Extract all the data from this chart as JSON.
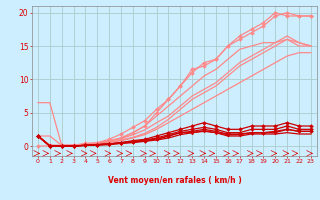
{
  "background_color": "#cceeff",
  "grid_color": "#aacccc",
  "text_color": "#dd0000",
  "xlabel": "Vent moyen/en rafales ( km/h )",
  "x": [
    0,
    1,
    2,
    3,
    4,
    5,
    6,
    7,
    8,
    9,
    10,
    11,
    12,
    13,
    14,
    15,
    16,
    17,
    18,
    19,
    20,
    21,
    22,
    23
  ],
  "ylim": [
    -1.5,
    21
  ],
  "yticks": [
    0,
    5,
    10,
    15,
    20
  ],
  "series": [
    {
      "y": [
        6.5,
        6.5,
        0.1,
        0.1,
        0.2,
        0.4,
        0.8,
        1.2,
        2.0,
        3.0,
        4.5,
        6.0,
        7.5,
        9.0,
        10.5,
        11.5,
        13.0,
        14.5,
        15.0,
        15.5,
        15.5,
        16.0,
        15.0,
        15.0
      ],
      "color": "#ff8888",
      "marker": null,
      "lw": 0.9
    },
    {
      "y": [
        0.0,
        0.0,
        0.0,
        0.0,
        0.2,
        0.4,
        0.7,
        1.2,
        2.0,
        3.0,
        5.0,
        7.0,
        9.0,
        11.0,
        12.5,
        13.0,
        15.0,
        16.0,
        17.0,
        18.0,
        19.5,
        20.0,
        19.5,
        19.5
      ],
      "color": "#ff8888",
      "marker": "D",
      "ms": 2,
      "lw": 0.9
    },
    {
      "y": [
        1.5,
        1.5,
        0.1,
        0.1,
        0.2,
        0.3,
        0.5,
        0.8,
        1.2,
        1.7,
        2.5,
        3.5,
        4.5,
        5.5,
        6.5,
        7.5,
        8.5,
        9.5,
        10.5,
        11.5,
        12.5,
        13.5,
        14.0,
        14.0
      ],
      "color": "#ff8888",
      "marker": null,
      "lw": 0.9
    },
    {
      "y": [
        1.5,
        0.1,
        0.1,
        0.1,
        0.2,
        0.3,
        0.5,
        0.9,
        1.3,
        1.9,
        2.8,
        4.0,
        5.5,
        7.0,
        8.0,
        9.0,
        10.5,
        12.0,
        13.0,
        14.0,
        15.0,
        16.0,
        15.5,
        15.0
      ],
      "color": "#ff8888",
      "marker": null,
      "lw": 0.9
    },
    {
      "y": [
        1.5,
        0.1,
        0.0,
        0.1,
        0.2,
        0.3,
        0.7,
        1.1,
        1.7,
        2.4,
        3.5,
        4.5,
        6.0,
        7.5,
        8.5,
        9.5,
        11.0,
        12.5,
        13.5,
        14.5,
        15.5,
        16.5,
        15.5,
        15.0
      ],
      "color": "#ff8888",
      "marker": null,
      "lw": 0.9
    },
    {
      "y": [
        1.5,
        0.1,
        0.1,
        0.1,
        0.4,
        0.5,
        1.0,
        1.8,
        2.8,
        3.8,
        5.5,
        7.0,
        9.0,
        11.5,
        12.0,
        13.0,
        15.0,
        16.5,
        17.5,
        18.5,
        20.0,
        19.5,
        19.5,
        19.5
      ],
      "color": "#ff8888",
      "marker": "D",
      "ms": 2,
      "lw": 0.9
    },
    {
      "y": [
        1.5,
        0.0,
        0.0,
        0.0,
        0.1,
        0.2,
        0.3,
        0.5,
        0.8,
        1.0,
        1.5,
        2.0,
        2.5,
        3.0,
        3.5,
        3.0,
        2.5,
        2.5,
        3.0,
        3.0,
        3.0,
        3.5,
        3.0,
        3.0
      ],
      "color": "#cc0000",
      "marker": "D",
      "ms": 2,
      "lw": 0.9
    },
    {
      "y": [
        1.5,
        0.0,
        0.0,
        0.0,
        0.1,
        0.2,
        0.3,
        0.5,
        0.7,
        0.9,
        1.2,
        1.7,
        2.2,
        2.5,
        2.8,
        2.5,
        2.0,
        2.0,
        2.5,
        2.5,
        2.5,
        3.0,
        2.5,
        2.5
      ],
      "color": "#cc0000",
      "marker": "D",
      "ms": 2,
      "lw": 0.9
    },
    {
      "y": [
        1.5,
        0.0,
        0.0,
        0.0,
        0.1,
        0.2,
        0.3,
        0.4,
        0.6,
        0.8,
        1.0,
        1.5,
        2.0,
        2.2,
        2.5,
        2.2,
        1.8,
        1.8,
        2.0,
        2.0,
        2.2,
        2.5,
        2.2,
        2.2
      ],
      "color": "#cc0000",
      "marker": "D",
      "ms": 2,
      "lw": 0.9
    },
    {
      "y": [
        1.5,
        0.0,
        0.0,
        0.0,
        0.1,
        0.2,
        0.3,
        0.5,
        0.6,
        0.8,
        1.0,
        1.5,
        2.0,
        2.0,
        2.3,
        2.0,
        1.7,
        1.7,
        2.0,
        2.0,
        2.0,
        2.5,
        2.2,
        2.2
      ],
      "color": "#cc0000",
      "marker": "D",
      "ms": 1.5,
      "lw": 0.9
    },
    {
      "y": [
        1.5,
        0.0,
        0.0,
        0.0,
        0.1,
        0.1,
        0.2,
        0.4,
        0.5,
        0.7,
        0.9,
        1.2,
        1.7,
        2.0,
        2.2,
        2.0,
        1.5,
        1.5,
        1.8,
        1.8,
        1.8,
        2.0,
        1.8,
        1.8
      ],
      "color": "#cc0000",
      "marker": null,
      "lw": 0.9
    }
  ],
  "arrow_dirs": [
    1,
    -1,
    -1,
    -1,
    1,
    -1,
    1,
    1,
    -1,
    1,
    -1,
    1,
    -1,
    1,
    1,
    -1,
    1,
    -1,
    1,
    -1,
    1,
    1,
    -1,
    1
  ]
}
